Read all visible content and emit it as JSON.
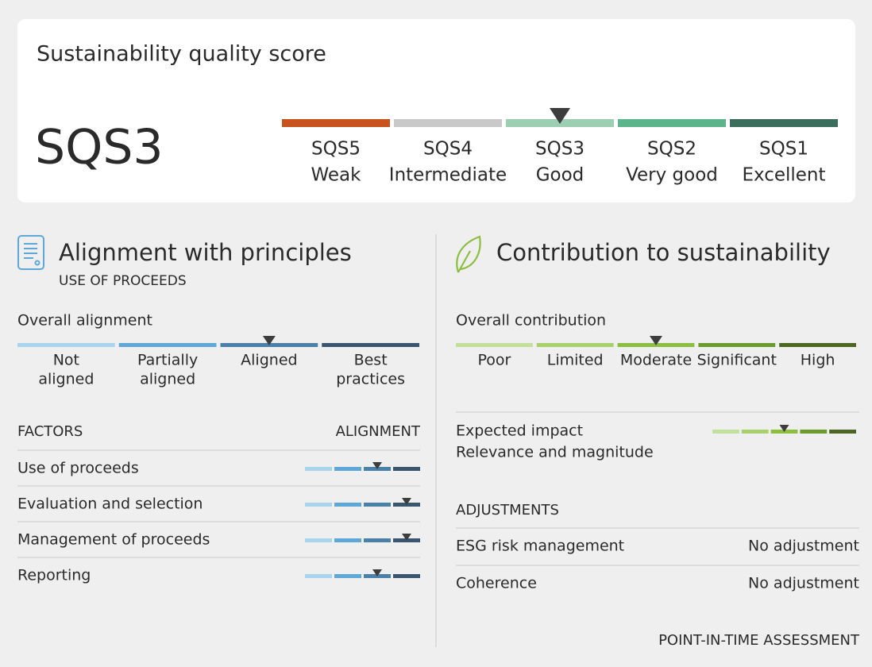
{
  "header": {
    "title": "Sustainability quality score",
    "score": "SQS3",
    "scale": {
      "selected": 2,
      "levels": [
        {
          "code": "SQS5",
          "label": "Weak",
          "color": "#c8531f"
        },
        {
          "code": "SQS4",
          "label": "Intermediate",
          "color": "#c9c9c9"
        },
        {
          "code": "SQS3",
          "label": "Good",
          "color": "#9ccfb1"
        },
        {
          "code": "SQS2",
          "label": "Very good",
          "color": "#5cb48b"
        },
        {
          "code": "SQS1",
          "label": "Excellent",
          "color": "#3b6e5c"
        }
      ]
    }
  },
  "alignment": {
    "title": "Alignment with principles",
    "subtitle": "USE OF PROCEEDS",
    "overall": {
      "label": "Overall alignment",
      "selected": 2,
      "colors": [
        "#a9d4ee",
        "#5ea8d9",
        "#4a81a8",
        "#3a5570"
      ],
      "levels": [
        [
          "Not",
          "aligned"
        ],
        [
          "Partially",
          "aligned"
        ],
        [
          "Aligned"
        ],
        [
          "Best",
          "practices"
        ]
      ]
    },
    "factors_header": "FACTORS",
    "alignment_header": "ALIGNMENT",
    "factors": [
      {
        "name": "Use of proceeds",
        "selected": 2
      },
      {
        "name": "Evaluation and selection",
        "selected": 3
      },
      {
        "name": "Management of proceeds",
        "selected": 3
      },
      {
        "name": "Reporting",
        "selected": 2
      }
    ]
  },
  "contribution": {
    "title": "Contribution to sustainability",
    "overall": {
      "label": "Overall contribution",
      "selected": 2,
      "colors": [
        "#c3df9c",
        "#a8d06c",
        "#8cbf3f",
        "#6b9a2d",
        "#4b6622"
      ],
      "levels": [
        "Poor",
        "Limited",
        "Moderate",
        "Significant",
        "High"
      ]
    },
    "impact": {
      "title": "Expected impact",
      "subtitle": "Relevance and magnitude",
      "selected": 2
    },
    "adjustments_header": "ADJUSTMENTS",
    "adjustments": [
      {
        "name": "ESG risk management",
        "value": "No adjustment"
      },
      {
        "name": "Coherence",
        "value": "No adjustment"
      }
    ]
  },
  "footer": "POINT-IN-TIME ASSESSMENT"
}
